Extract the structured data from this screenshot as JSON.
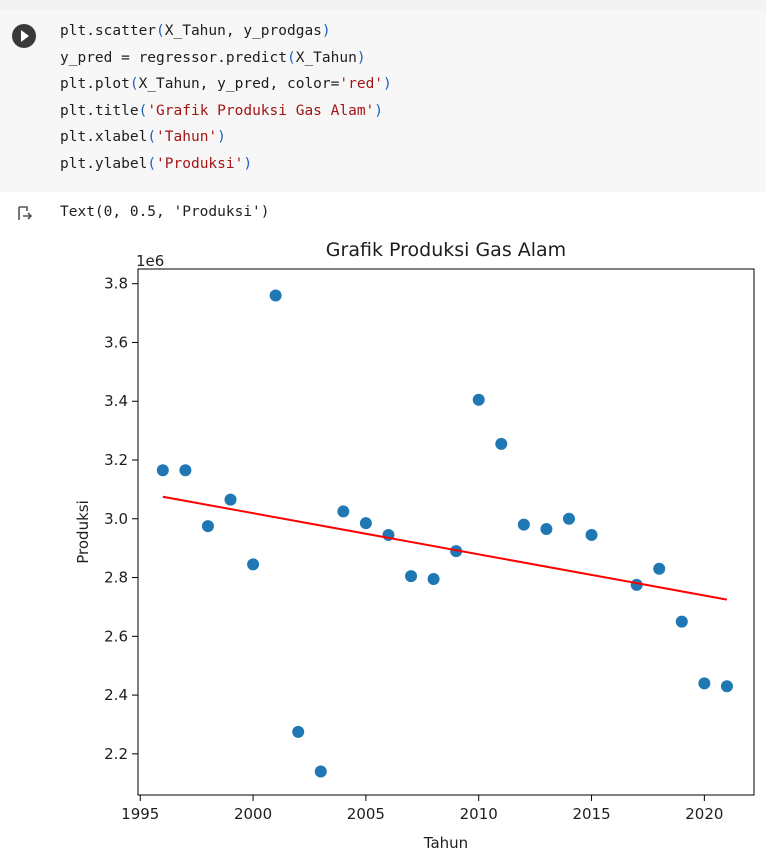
{
  "cell": {
    "run_button_icon": "play-circle-icon",
    "code_lines": [
      [
        {
          "t": "plt.scatter"
        },
        {
          "t": "(",
          "c": "paren"
        },
        {
          "t": "X_Tahun, y_prodgas"
        },
        {
          "t": ")",
          "c": "paren"
        }
      ],
      [
        {
          "t": "y_pred = regressor.predict"
        },
        {
          "t": "(",
          "c": "paren"
        },
        {
          "t": "X_Tahun"
        },
        {
          "t": ")",
          "c": "paren"
        }
      ],
      [
        {
          "t": "plt.plot"
        },
        {
          "t": "(",
          "c": "paren"
        },
        {
          "t": "X_Tahun, y_pred, color="
        },
        {
          "t": "'red'",
          "c": "str"
        },
        {
          "t": ")",
          "c": "paren"
        }
      ],
      [
        {
          "t": "plt.title"
        },
        {
          "t": "(",
          "c": "paren"
        },
        {
          "t": "'Grafik Produksi Gas Alam'",
          "c": "str"
        },
        {
          "t": ")",
          "c": "paren"
        }
      ],
      [
        {
          "t": "plt.xlabel"
        },
        {
          "t": "(",
          "c": "paren"
        },
        {
          "t": "'Tahun'",
          "c": "str"
        },
        {
          "t": ")",
          "c": "paren"
        }
      ],
      [
        {
          "t": "plt.ylabel"
        },
        {
          "t": "(",
          "c": "paren"
        },
        {
          "t": "'Produksi'",
          "c": "str"
        },
        {
          "t": ")",
          "c": "paren"
        }
      ]
    ]
  },
  "output": {
    "icon": "output-arrow-icon",
    "text": "Text(0, 0.5, 'Produksi')"
  },
  "chart_data": {
    "type": "scatter",
    "title": "Grafik Produksi Gas Alam",
    "xlabel": "Tahun",
    "ylabel": "Produksi",
    "offset_text": "1e6",
    "xlim": [
      1994.9,
      2022.2
    ],
    "ylim": [
      2.06,
      3.85
    ],
    "x_ticks": [
      1995,
      2000,
      2005,
      2010,
      2015,
      2020
    ],
    "x_tick_labels": [
      "1995",
      "2000",
      "2005",
      "2010",
      "2015",
      "2020"
    ],
    "y_ticks": [
      2.2,
      2.4,
      2.6,
      2.8,
      3.0,
      3.2,
      3.4,
      3.6,
      3.8
    ],
    "y_tick_labels": [
      "2.2",
      "2.4",
      "2.6",
      "2.8",
      "3.0",
      "3.2",
      "3.4",
      "3.6",
      "3.8"
    ],
    "scatter_color": "#1f77b4",
    "line_color": "#ff0000",
    "scatter": {
      "x": [
        1996,
        1997,
        1998,
        1999,
        2000,
        2001,
        2002,
        2003,
        2004,
        2005,
        2006,
        2007,
        2008,
        2009,
        2010,
        2011,
        2012,
        2013,
        2014,
        2015,
        2017,
        2018,
        2019,
        2020,
        2021
      ],
      "y": [
        3.165,
        3.165,
        2.975,
        3.065,
        2.845,
        3.76,
        2.275,
        2.14,
        3.025,
        2.985,
        2.945,
        2.805,
        2.795,
        2.89,
        3.405,
        3.255,
        2.98,
        2.965,
        3.0,
        2.945,
        2.775,
        2.83,
        2.65,
        2.44,
        2.43
      ]
    },
    "regression_line": {
      "x": [
        1996,
        2021
      ],
      "y": [
        3.075,
        2.725
      ]
    }
  }
}
